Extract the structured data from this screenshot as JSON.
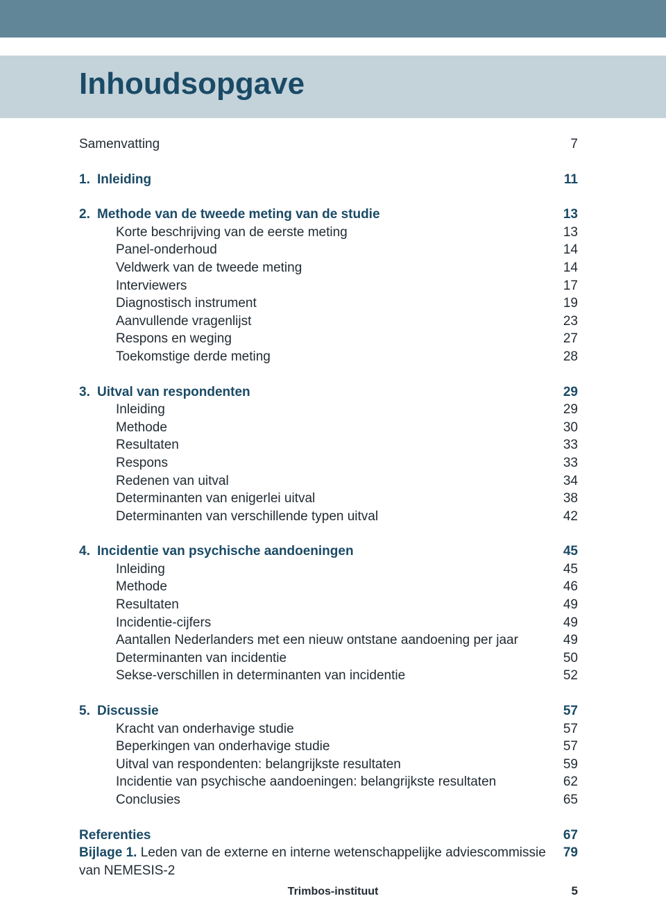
{
  "colors": {
    "top_band": "#608698",
    "title_band_bg": "#c4d3da",
    "accent_text": "#1a4a66",
    "body_text": "#222b33",
    "page_bg": "#ffffff"
  },
  "typography": {
    "title_fontsize": 44,
    "body_fontsize": 19,
    "line_height": 25.6,
    "footer_fontsize": 16
  },
  "title": "Inhoudsopgave",
  "samenvatting": {
    "label": "Samenvatting",
    "page": "7"
  },
  "ch1": {
    "num": "1.",
    "label": "Inleiding",
    "page": "11"
  },
  "ch2": {
    "num": "2.",
    "label": "Methode van de tweede meting van de studie",
    "page": "13",
    "items": [
      {
        "label": "Korte beschrijving van de eerste meting",
        "page": "13"
      },
      {
        "label": "Panel-onderhoud",
        "page": "14"
      },
      {
        "label": "Veldwerk van de tweede meting",
        "page": "14"
      },
      {
        "label": "Interviewers",
        "page": "17"
      },
      {
        "label": "Diagnostisch instrument",
        "page": "19"
      },
      {
        "label": "Aanvullende vragenlijst",
        "page": "23"
      },
      {
        "label": "Respons en weging",
        "page": "27"
      },
      {
        "label": "Toekomstige derde meting",
        "page": "28"
      }
    ]
  },
  "ch3": {
    "num": "3.",
    "label": "Uitval van respondenten",
    "page": "29",
    "items": [
      {
        "label": "Inleiding",
        "page": "29"
      },
      {
        "label": "Methode",
        "page": "30"
      },
      {
        "label": "Resultaten",
        "page": "33"
      },
      {
        "label": "Respons",
        "page": "33"
      },
      {
        "label": "Redenen van uitval",
        "page": "34"
      },
      {
        "label": "Determinanten van enigerlei uitval",
        "page": "38"
      },
      {
        "label": "Determinanten van verschillende typen uitval",
        "page": "42"
      }
    ]
  },
  "ch4": {
    "num": "4.",
    "label": "Incidentie van psychische aandoeningen",
    "page": "45",
    "items": [
      {
        "label": "Inleiding",
        "page": "45"
      },
      {
        "label": "Methode",
        "page": "46"
      },
      {
        "label": "Resultaten",
        "page": "49"
      },
      {
        "label": "Incidentie-cijfers",
        "page": "49"
      },
      {
        "label": "Aantallen Nederlanders met een nieuw ontstane aandoening per jaar",
        "page": "49"
      },
      {
        "label": "Determinanten van incidentie",
        "page": "50"
      },
      {
        "label": "Sekse-verschillen in determinanten van incidentie",
        "page": "52"
      }
    ]
  },
  "ch5": {
    "num": "5.",
    "label": "Discussie",
    "page": "57",
    "items": [
      {
        "label": "Kracht van onderhavige studie",
        "page": "57"
      },
      {
        "label": "Beperkingen van onderhavige studie",
        "page": "57"
      },
      {
        "label": "Uitval van respondenten: belangrijkste resultaten",
        "page": "59"
      },
      {
        "label": "Incidentie van psychische aandoeningen: belangrijkste resultaten",
        "page": "62"
      },
      {
        "label": "Conclusies",
        "page": "65"
      }
    ]
  },
  "referenties": {
    "label": "Referenties",
    "page": "67"
  },
  "bijlage": {
    "prefix": "Bijlage 1.",
    "label": " Leden van de externe en interne wetenschappelijke adviescommissie van NEMESIS-2",
    "page": "79"
  },
  "footer": {
    "center": "Trimbos-instituut",
    "page": "5"
  }
}
